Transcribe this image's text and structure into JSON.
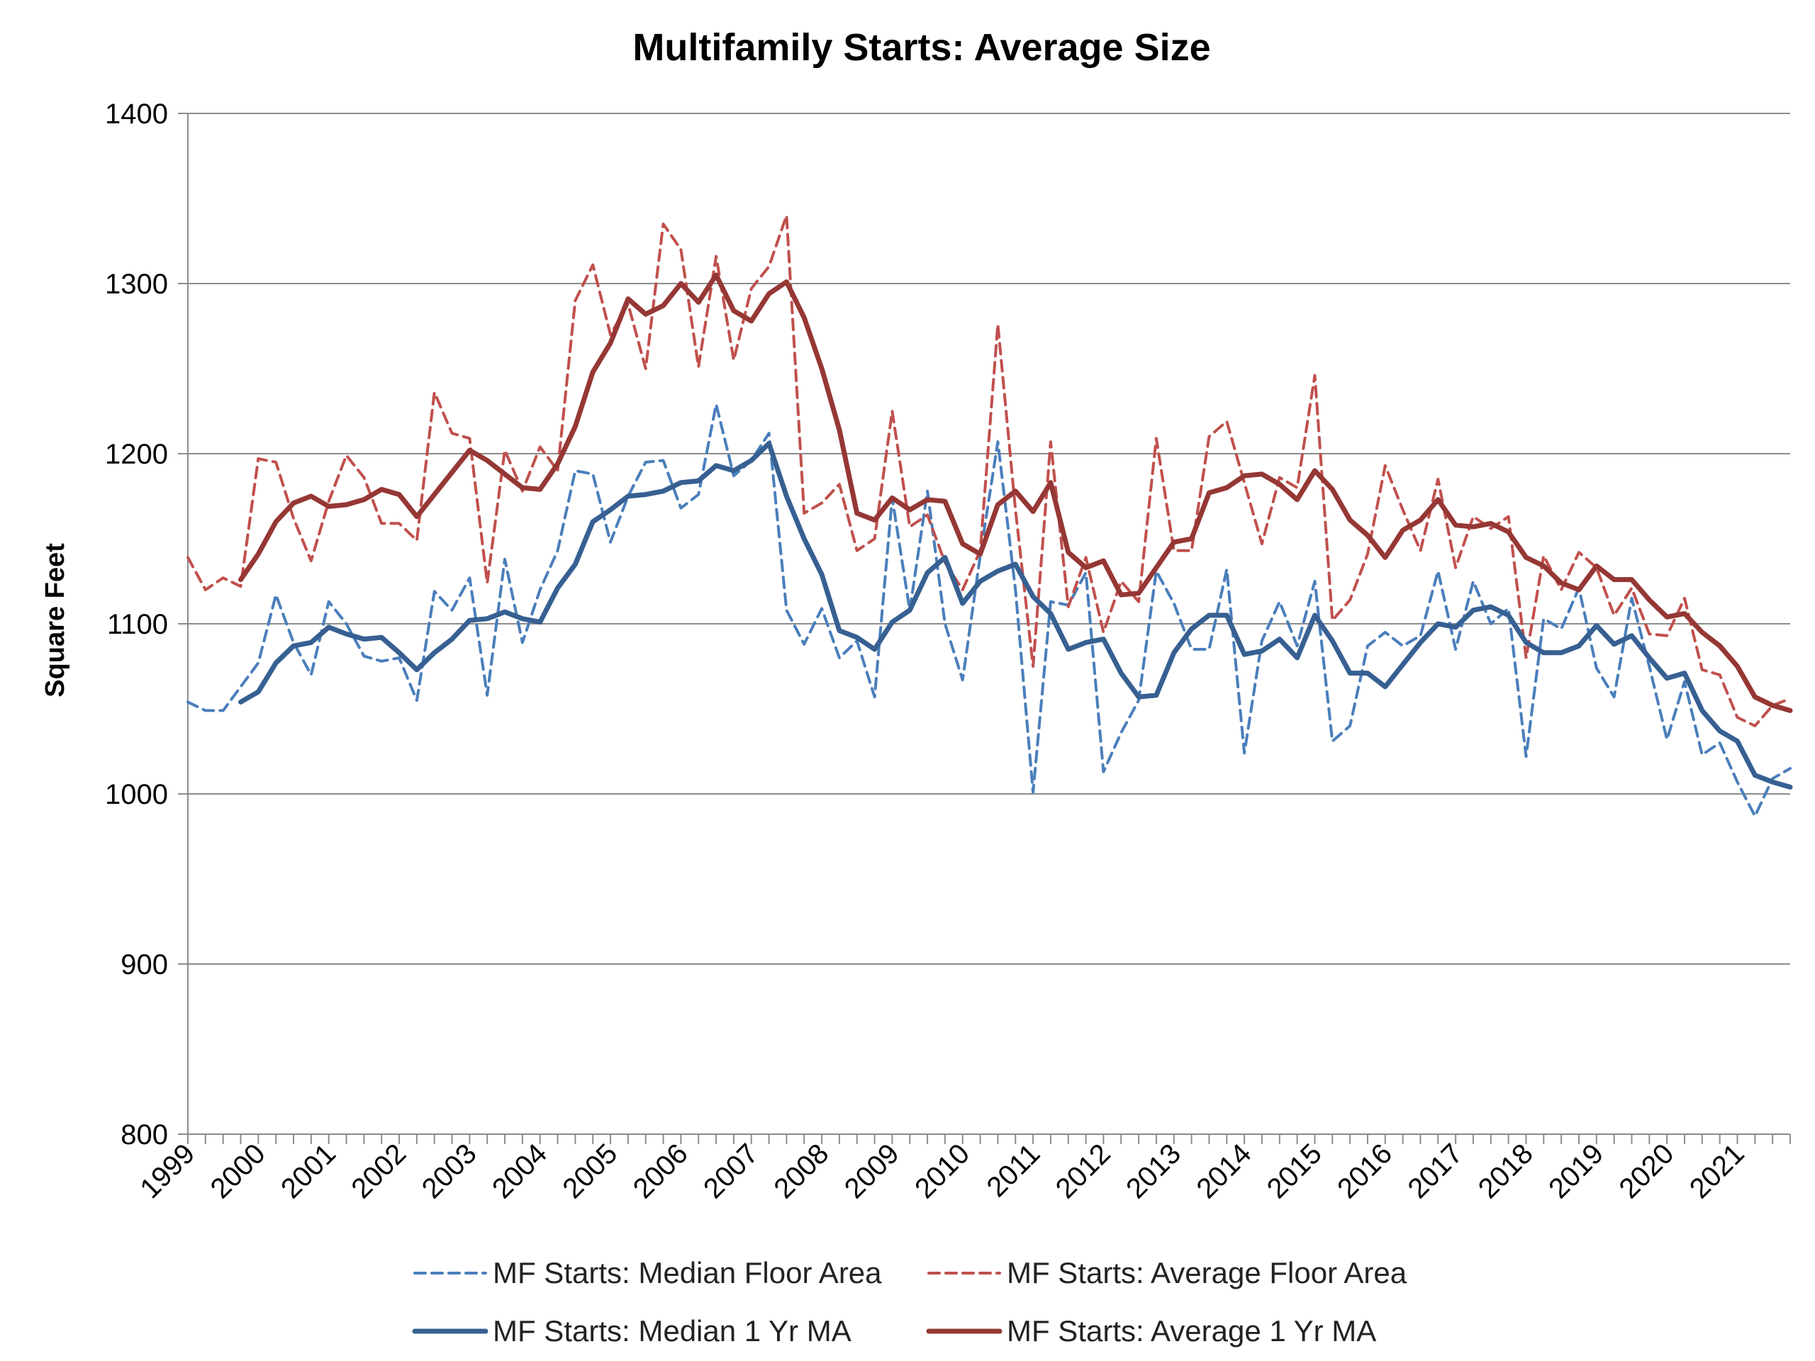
{
  "chart_data": {
    "type": "line",
    "title": "Multifamily Starts: Average Size",
    "xlabel": "",
    "ylabel": "Square Feet",
    "ylim": [
      800,
      1400
    ],
    "yticks": [
      "800",
      "900",
      "1000",
      "1100",
      "1200",
      "1300",
      "1400"
    ],
    "year_labels": [
      "1999",
      "2000",
      "2001",
      "2002",
      "2003",
      "2004",
      "2005",
      "2006",
      "2007",
      "2008",
      "2009",
      "2010",
      "2011",
      "2012",
      "2013",
      "2014",
      "2015",
      "2016",
      "2017",
      "2018",
      "2019",
      "2020",
      "2021"
    ],
    "start_year": 1999,
    "periods_per_year": 4,
    "grid": true,
    "legend_position": "bottom",
    "series": [
      {
        "name": "MF Starts: Median Floor Area",
        "color": "#4a7ebb",
        "style": "dashed",
        "values": [
          1054,
          1049,
          1049,
          1063,
          1077,
          1117,
          1089,
          1070,
          1113,
          1100,
          1081,
          1078,
          1080,
          1055,
          1119,
          1108,
          1127,
          1058,
          1138,
          1089,
          1120,
          1143,
          1190,
          1188,
          1148,
          1175,
          1195,
          1196,
          1168,
          1176,
          1229,
          1187,
          1196,
          1212,
          1108,
          1088,
          1109,
          1080,
          1090,
          1057,
          1174,
          1108,
          1178,
          1100,
          1067,
          1140,
          1207,
          1120,
          1001,
          1113,
          1111,
          1130,
          1013,
          1036,
          1055,
          1131,
          1112,
          1085,
          1085,
          1132,
          1024,
          1090,
          1113,
          1087,
          1125,
          1031,
          1040,
          1087,
          1095,
          1087,
          1093,
          1131,
          1085,
          1125,
          1100,
          1109,
          1022,
          1103,
          1097,
          1121,
          1074,
          1057,
          1115,
          1075,
          1032,
          1066,
          1023,
          1030,
          1007,
          987,
          1009,
          1015
        ]
      },
      {
        "name": "MF Starts: Average Floor Area",
        "color": "#c0504d",
        "style": "dashed",
        "values": [
          1139,
          1120,
          1127,
          1122,
          1197,
          1195,
          1162,
          1137,
          1172,
          1199,
          1186,
          1159,
          1159,
          1149,
          1236,
          1212,
          1209,
          1124,
          1202,
          1178,
          1204,
          1190,
          1290,
          1311,
          1270,
          1288,
          1250,
          1335,
          1320,
          1251,
          1316,
          1255,
          1297,
          1310,
          1340,
          1165,
          1171,
          1182,
          1143,
          1150,
          1225,
          1157,
          1164,
          1136,
          1120,
          1143,
          1276,
          1167,
          1075,
          1207,
          1110,
          1139,
          1095,
          1125,
          1113,
          1209,
          1143,
          1143,
          1210,
          1219,
          1183,
          1147,
          1186,
          1180,
          1246,
          1102,
          1114,
          1141,
          1193,
          1167,
          1143,
          1185,
          1133,
          1163,
          1156,
          1163,
          1080,
          1140,
          1120,
          1142,
          1133,
          1105,
          1121,
          1094,
          1093,
          1115,
          1073,
          1070,
          1045,
          1040,
          1052,
          1056
        ]
      },
      {
        "name": "MF Starts: Median 1 Yr MA",
        "color": "#376092",
        "style": "solid",
        "start_index": 3,
        "values": [
          1054,
          1060,
          1077,
          1087,
          1089,
          1098,
          1094,
          1091,
          1092,
          1083,
          1073,
          1083,
          1091,
          1102,
          1103,
          1107,
          1103,
          1101,
          1121,
          1135,
          1160,
          1167,
          1175,
          1176,
          1178,
          1183,
          1184,
          1193,
          1190,
          1196,
          1206,
          1175,
          1150,
          1129,
          1096,
          1092,
          1085,
          1101,
          1108,
          1130,
          1139,
          1112,
          1125,
          1131,
          1135,
          1116,
          1106,
          1085,
          1089,
          1091,
          1071,
          1057,
          1058,
          1083,
          1097,
          1105,
          1105,
          1082,
          1084,
          1091,
          1080,
          1105,
          1090,
          1071,
          1071,
          1063,
          1076,
          1089,
          1100,
          1098,
          1108,
          1110,
          1105,
          1089,
          1083,
          1083,
          1087,
          1099,
          1088,
          1093,
          1080,
          1068,
          1071,
          1049,
          1037,
          1031,
          1011,
          1007,
          1004
        ]
      },
      {
        "name": "MF Starts: Average 1 Yr MA",
        "color": "#953735",
        "style": "solid",
        "start_index": 3,
        "values": [
          1126,
          1141,
          1160,
          1171,
          1175,
          1169,
          1170,
          1173,
          1179,
          1176,
          1163,
          1176,
          1189,
          1202,
          1196,
          1188,
          1180,
          1179,
          1194,
          1216,
          1248,
          1265,
          1291,
          1282,
          1287,
          1300,
          1289,
          1305,
          1284,
          1278,
          1294,
          1301,
          1280,
          1250,
          1214,
          1165,
          1161,
          1174,
          1167,
          1173,
          1172,
          1147,
          1141,
          1170,
          1178,
          1166,
          1183,
          1142,
          1133,
          1137,
          1117,
          1118,
          1133,
          1148,
          1150,
          1177,
          1180,
          1187,
          1188,
          1182,
          1173,
          1190,
          1179,
          1161,
          1152,
          1139,
          1155,
          1161,
          1173,
          1158,
          1157,
          1159,
          1154,
          1139,
          1134,
          1124,
          1120,
          1134,
          1126,
          1126,
          1114,
          1104,
          1106,
          1095,
          1087,
          1075,
          1057,
          1052,
          1049
        ]
      }
    ]
  }
}
